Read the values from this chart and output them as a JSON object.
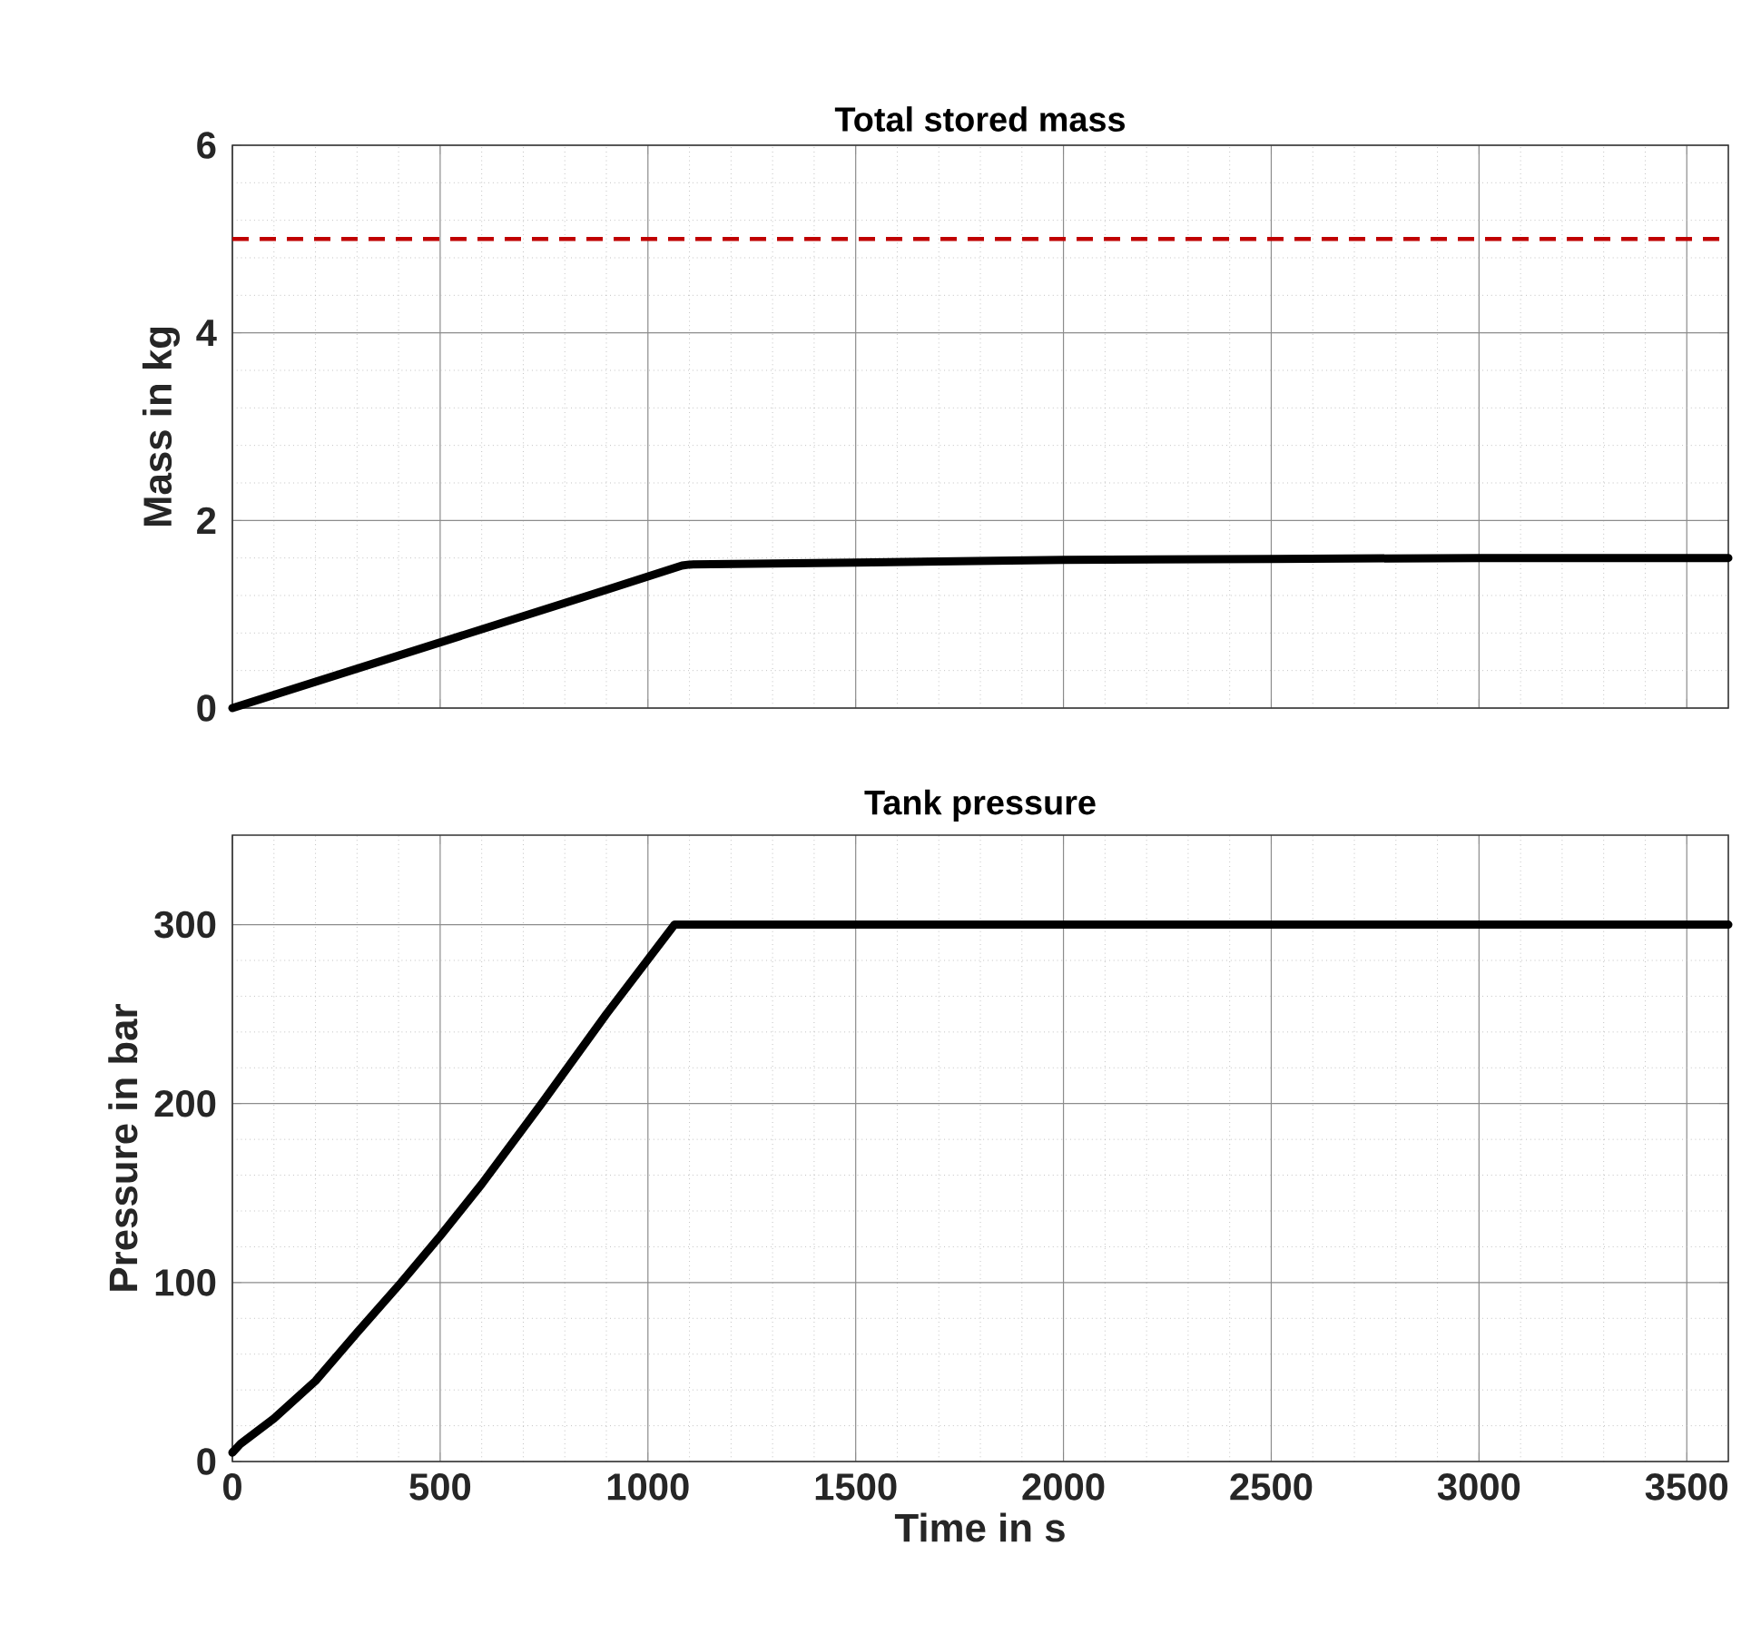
{
  "chart_data": [
    {
      "type": "line",
      "title": "Total stored mass",
      "ylabel": "Mass in kg",
      "xlim": [
        0,
        3600
      ],
      "xticks": [
        0,
        500,
        1000,
        1500,
        2000,
        2500,
        3000,
        3500
      ],
      "ylim": [
        0,
        6
      ],
      "yticks": [
        0,
        2,
        4,
        6
      ],
      "grid": true,
      "tick_labels": "y",
      "series": [
        {
          "color": "#000000",
          "x": [
            0,
            300,
            600,
            900,
            1082,
            1100,
            1500,
            2000,
            2500,
            3000,
            3600
          ],
          "values": [
            0,
            0.42,
            0.84,
            1.26,
            1.52,
            1.53,
            1.55,
            1.58,
            1.59,
            1.6,
            1.6
          ]
        }
      ],
      "ref_lines": [
        {
          "axis": "y",
          "value": 5,
          "color": "#c00000",
          "line_style": "dashed"
        }
      ]
    },
    {
      "type": "line",
      "title": "Tank pressure",
      "xlabel": "Time in s",
      "ylabel": "Pressure in bar",
      "xlim": [
        0,
        3600
      ],
      "xticks": [
        0,
        500,
        1000,
        1500,
        2000,
        2500,
        3000,
        3500
      ],
      "ylim": [
        0,
        350
      ],
      "yticks": [
        0,
        100,
        200,
        300
      ],
      "grid": true,
      "series": [
        {
          "color": "#000000",
          "x": [
            0,
            20,
            100,
            200,
            300,
            406,
            500,
            600,
            744,
            900,
            1064,
            1500,
            2000,
            2500,
            3000,
            3600
          ],
          "values": [
            5,
            10,
            24,
            45,
            72,
            100,
            126,
            155,
            200,
            250,
            300,
            300,
            300,
            300,
            300,
            300
          ]
        }
      ]
    }
  ]
}
